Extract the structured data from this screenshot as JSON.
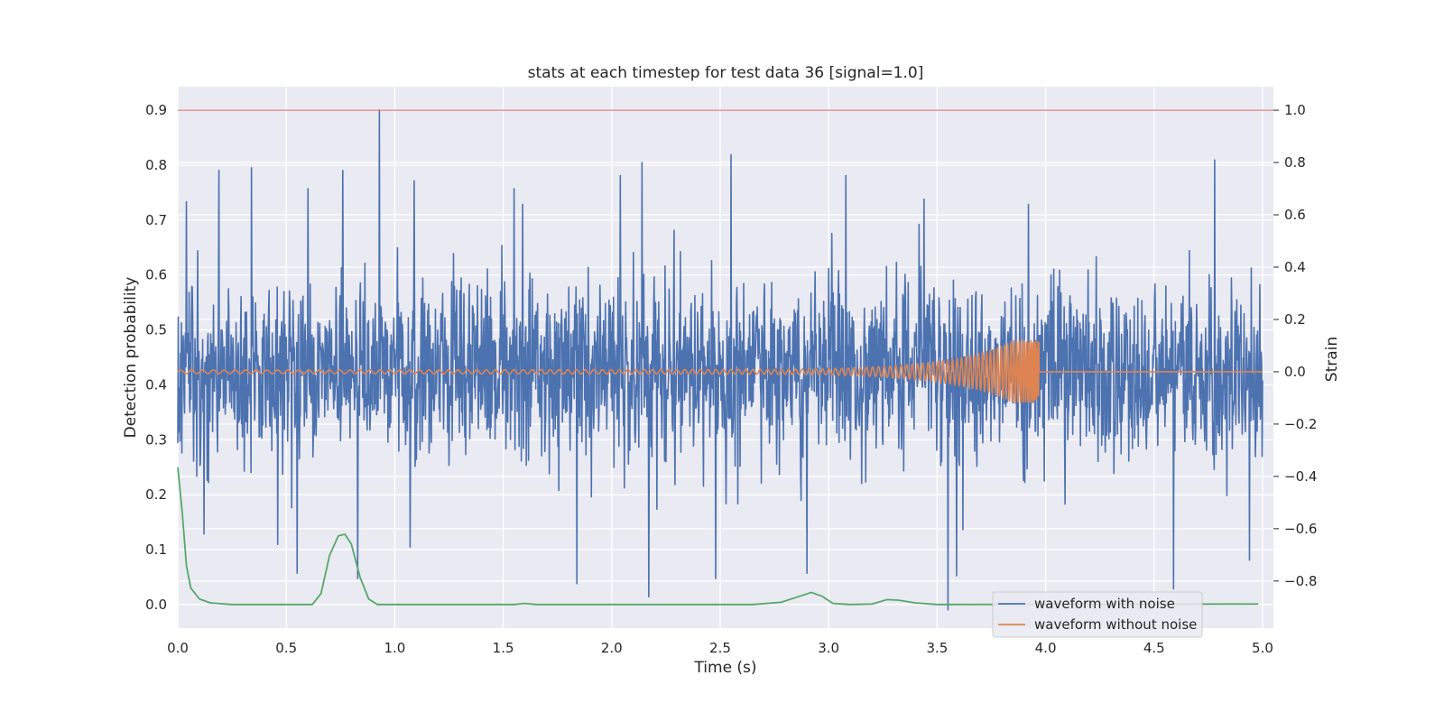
{
  "chart_data": {
    "type": "line",
    "title": "stats at each timestep for test data 36 [signal=1.0]",
    "xlabel": "Time (s)",
    "ylabel": "Detection probability",
    "y2label": "Strain",
    "xlim": [
      0.0,
      5.05
    ],
    "ylim": [
      -0.043,
      0.943
    ],
    "y2lim": [
      -0.98,
      1.09
    ],
    "xticks": [
      0.0,
      0.5,
      1.0,
      1.5,
      2.0,
      2.5,
      3.0,
      3.5,
      4.0,
      4.5,
      5.0
    ],
    "xtick_labels": [
      "0.0",
      "0.5",
      "1.0",
      "1.5",
      "2.0",
      "2.5",
      "3.0",
      "3.5",
      "4.0",
      "4.5",
      "5.0"
    ],
    "yticks": [
      0.0,
      0.1,
      0.2,
      0.3,
      0.4,
      0.5,
      0.6,
      0.7,
      0.8,
      0.9
    ],
    "ytick_labels": [
      "0.0",
      "0.1",
      "0.2",
      "0.3",
      "0.4",
      "0.5",
      "0.6",
      "0.7",
      "0.8",
      "0.9"
    ],
    "y2ticks": [
      -0.8,
      -0.6,
      -0.4,
      -0.2,
      0.0,
      0.2,
      0.4,
      0.6,
      0.8,
      1.0
    ],
    "y2tick_labels": [
      "−0.8",
      "−0.6",
      "−0.4",
      "−0.2",
      "0.0",
      "0.2",
      "0.4",
      "0.6",
      "0.8",
      "1.0"
    ],
    "grid": true,
    "legend_position": "bottom-right",
    "threshold_line": {
      "axis": "y2",
      "value": 1.0,
      "color": "#d65f5f"
    },
    "series": [
      {
        "name": "waveform with noise",
        "axis": "y2",
        "color": "#4c72b0",
        "kind": "gaussian-noise",
        "x_range": [
          0.0,
          5.0
        ],
        "sigma": 0.17,
        "peaks": [
          [
            0.04,
            0.65
          ],
          [
            0.19,
            0.77
          ],
          [
            0.34,
            0.78
          ],
          [
            0.6,
            0.7
          ],
          [
            0.76,
            0.77
          ],
          [
            0.93,
            1.0
          ],
          [
            1.09,
            0.73
          ],
          [
            1.55,
            0.7
          ],
          [
            1.59,
            0.64
          ],
          [
            2.04,
            0.75
          ],
          [
            2.14,
            0.8
          ],
          [
            2.55,
            0.83
          ],
          [
            3.08,
            0.75
          ],
          [
            3.44,
            0.66
          ],
          [
            3.92,
            0.64
          ],
          [
            4.78,
            0.81
          ],
          [
            0.12,
            -0.62
          ],
          [
            0.46,
            -0.66
          ],
          [
            0.55,
            -0.77
          ],
          [
            0.83,
            -0.79
          ],
          [
            1.07,
            -0.67
          ],
          [
            1.84,
            -0.81
          ],
          [
            2.17,
            -0.86
          ],
          [
            2.48,
            -0.79
          ],
          [
            2.9,
            -0.77
          ],
          [
            3.55,
            -0.91
          ],
          [
            3.59,
            -0.78
          ],
          [
            4.59,
            -0.83
          ],
          [
            4.94,
            -0.72
          ]
        ]
      },
      {
        "name": "waveform without noise",
        "axis": "y2",
        "color": "#dd8452",
        "kind": "chirp",
        "x_range": [
          0.0,
          5.0
        ],
        "merger_time": 3.97,
        "amplitude_start": 0.007,
        "amplitude_peak": 0.12
      },
      {
        "name": "",
        "axis": "y",
        "color": "#55a868",
        "kind": "curve",
        "x_range": [
          0.0,
          4.98
        ],
        "points": [
          [
            0.0,
            0.25
          ],
          [
            0.02,
            0.17
          ],
          [
            0.04,
            0.07
          ],
          [
            0.06,
            0.03
          ],
          [
            0.1,
            0.01
          ],
          [
            0.15,
            0.003
          ],
          [
            0.25,
            0.0
          ],
          [
            0.62,
            0.0
          ],
          [
            0.66,
            0.02
          ],
          [
            0.7,
            0.09
          ],
          [
            0.74,
            0.125
          ],
          [
            0.77,
            0.128
          ],
          [
            0.8,
            0.11
          ],
          [
            0.84,
            0.05
          ],
          [
            0.88,
            0.01
          ],
          [
            0.92,
            0.0
          ],
          [
            1.55,
            0.0
          ],
          [
            1.6,
            0.002
          ],
          [
            1.65,
            0.0
          ],
          [
            2.65,
            0.0
          ],
          [
            2.78,
            0.004
          ],
          [
            2.85,
            0.013
          ],
          [
            2.92,
            0.022
          ],
          [
            2.97,
            0.015
          ],
          [
            3.02,
            0.002
          ],
          [
            3.1,
            0.0
          ],
          [
            3.2,
            0.001
          ],
          [
            3.27,
            0.009
          ],
          [
            3.32,
            0.008
          ],
          [
            3.4,
            0.003
          ],
          [
            3.5,
            0.0
          ],
          [
            4.98,
            0.001
          ]
        ]
      }
    ],
    "legend": [
      "waveform with noise",
      "waveform without noise"
    ]
  }
}
